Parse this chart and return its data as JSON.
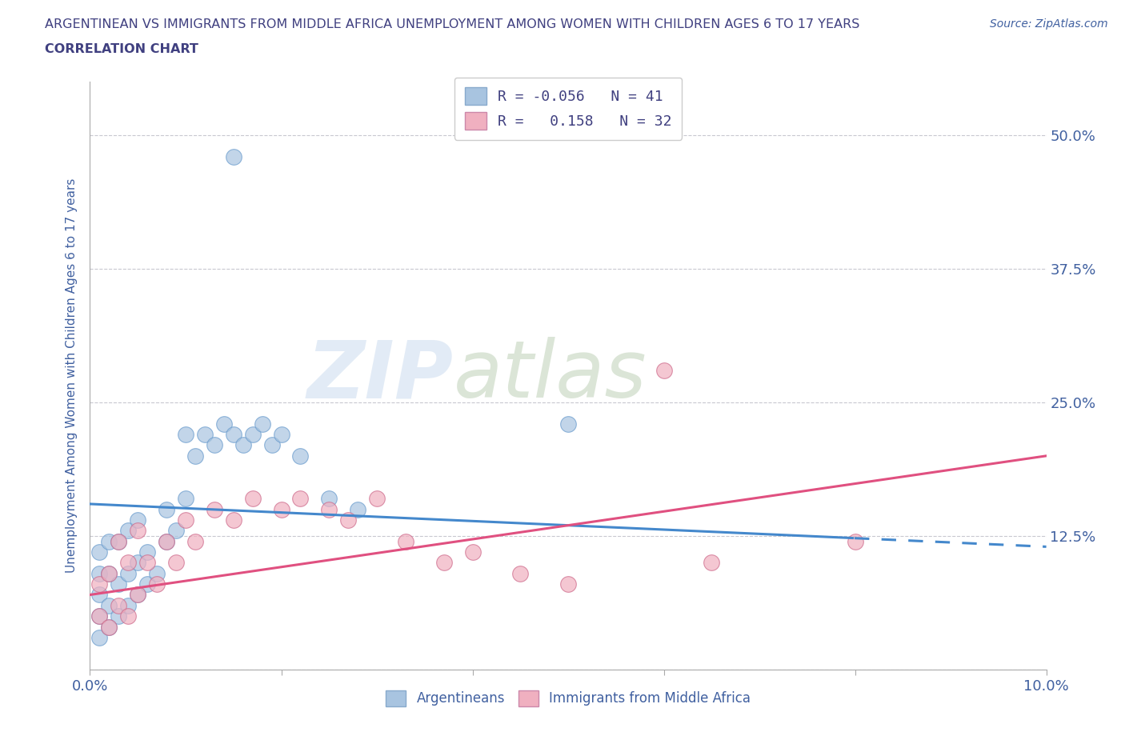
{
  "title_line1": "ARGENTINEAN VS IMMIGRANTS FROM MIDDLE AFRICA UNEMPLOYMENT AMONG WOMEN WITH CHILDREN AGES 6 TO 17 YEARS",
  "title_line2": "CORRELATION CHART",
  "source_text": "Source: ZipAtlas.com",
  "ylabel": "Unemployment Among Women with Children Ages 6 to 17 years",
  "xlim": [
    0.0,
    0.1
  ],
  "ylim": [
    0.0,
    0.55
  ],
  "xticks": [
    0.0,
    0.02,
    0.04,
    0.06,
    0.08,
    0.1
  ],
  "xtick_labels": [
    "0.0%",
    "",
    "",
    "",
    "",
    "10.0%"
  ],
  "ytick_positions": [
    0.0,
    0.125,
    0.25,
    0.375,
    0.5
  ],
  "ytick_labels": [
    "",
    "12.5%",
    "25.0%",
    "37.5%",
    "50.0%"
  ],
  "grid_color": "#c8c8d0",
  "bg_color": "#ffffff",
  "watermark": "ZIPatlas",
  "blue_color": "#a8c4e0",
  "pink_color": "#f0b0c0",
  "line_blue": "#4488cc",
  "line_pink": "#e05080",
  "title_color": "#404080",
  "label_color": "#4060a0",
  "legend_label_arg": "Argentineans",
  "legend_label_imm": "Immigrants from Middle Africa",
  "arg_x": [
    0.001,
    0.001,
    0.001,
    0.001,
    0.001,
    0.002,
    0.002,
    0.002,
    0.002,
    0.003,
    0.003,
    0.003,
    0.004,
    0.004,
    0.004,
    0.005,
    0.005,
    0.005,
    0.006,
    0.006,
    0.007,
    0.008,
    0.008,
    0.009,
    0.01,
    0.01,
    0.011,
    0.012,
    0.013,
    0.014,
    0.015,
    0.016,
    0.017,
    0.018,
    0.019,
    0.02,
    0.022,
    0.025,
    0.028,
    0.05,
    0.015
  ],
  "arg_y": [
    0.03,
    0.05,
    0.07,
    0.09,
    0.11,
    0.04,
    0.06,
    0.09,
    0.12,
    0.05,
    0.08,
    0.12,
    0.06,
    0.09,
    0.13,
    0.07,
    0.1,
    0.14,
    0.08,
    0.11,
    0.09,
    0.12,
    0.15,
    0.13,
    0.16,
    0.22,
    0.2,
    0.22,
    0.21,
    0.23,
    0.22,
    0.21,
    0.22,
    0.23,
    0.21,
    0.22,
    0.2,
    0.16,
    0.15,
    0.23,
    0.48
  ],
  "imm_x": [
    0.001,
    0.001,
    0.002,
    0.002,
    0.003,
    0.003,
    0.004,
    0.004,
    0.005,
    0.005,
    0.006,
    0.007,
    0.008,
    0.009,
    0.01,
    0.011,
    0.013,
    0.015,
    0.017,
    0.02,
    0.022,
    0.025,
    0.027,
    0.03,
    0.033,
    0.037,
    0.04,
    0.045,
    0.05,
    0.06,
    0.065,
    0.08
  ],
  "imm_y": [
    0.05,
    0.08,
    0.04,
    0.09,
    0.06,
    0.12,
    0.05,
    0.1,
    0.07,
    0.13,
    0.1,
    0.08,
    0.12,
    0.1,
    0.14,
    0.12,
    0.15,
    0.14,
    0.16,
    0.15,
    0.16,
    0.15,
    0.14,
    0.16,
    0.12,
    0.1,
    0.11,
    0.09,
    0.08,
    0.28,
    0.1,
    0.12
  ],
  "line_blue_y0": 0.155,
  "line_blue_y1": 0.115,
  "line_pink_y0": 0.07,
  "line_pink_y1": 0.2
}
